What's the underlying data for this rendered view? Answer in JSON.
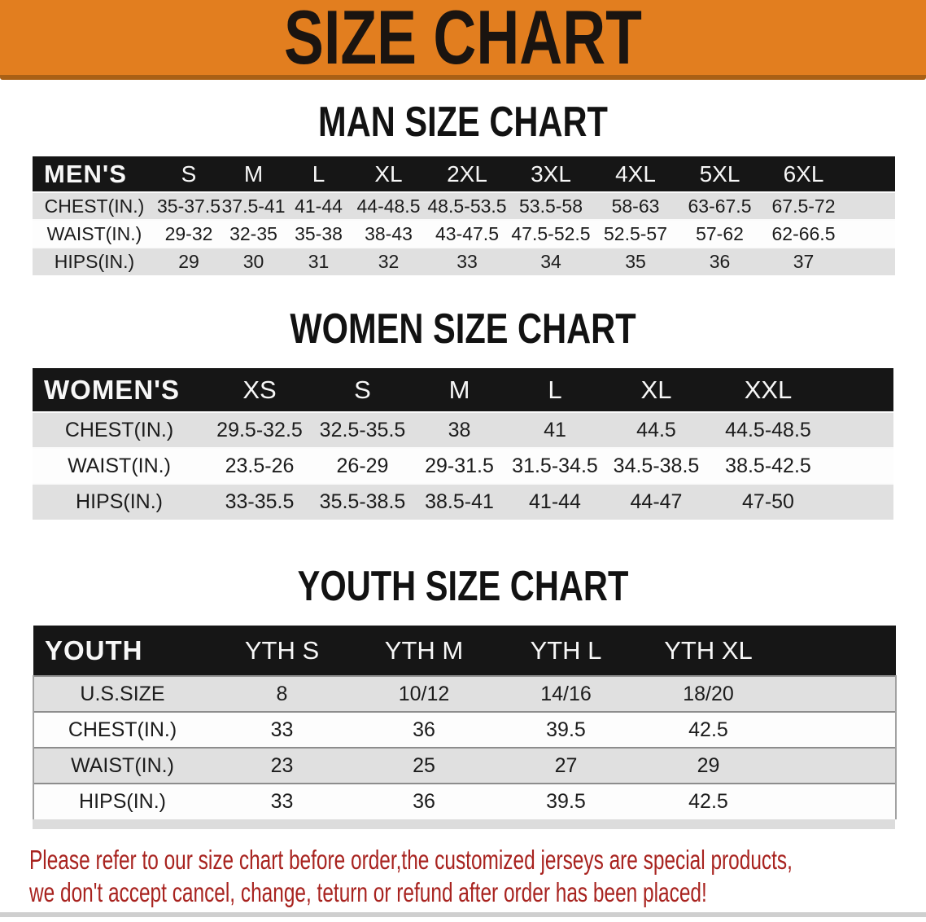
{
  "banner": {
    "title": "SIZE CHART",
    "bg_color": "#e27e1f",
    "border_color": "#a96015"
  },
  "colors": {
    "table_header_bar": "#161616",
    "row_gray": "#e0e0e0",
    "row_white": "#fdfdfd"
  },
  "sections": [
    {
      "heading": "MAN SIZE CHART",
      "label": "MEN'S",
      "columns": [
        "S",
        "M",
        "L",
        "XL",
        "2XL",
        "3XL",
        "4XL",
        "5XL",
        "6XL"
      ],
      "rows": [
        {
          "label": "CHEST(IN.)",
          "values": [
            "35-37.5",
            "37.5-41",
            "41-44",
            "44-48.5",
            "48.5-53.5",
            "53.5-58",
            "58-63",
            "63-67.5",
            "67.5-72"
          ]
        },
        {
          "label": "WAIST(IN.)",
          "values": [
            "29-32",
            "32-35",
            "35-38",
            "38-43",
            "43-47.5",
            "47.5-52.5",
            "52.5-57",
            "57-62",
            "62-66.5"
          ]
        },
        {
          "label": "HIPS(IN.)",
          "values": [
            "29",
            "30",
            "31",
            "32",
            "33",
            "34",
            "35",
            "36",
            "37"
          ]
        }
      ]
    },
    {
      "heading": "WOMEN SIZE CHART",
      "label": "WOMEN'S",
      "columns": [
        "XS",
        "S",
        "M",
        "L",
        "XL",
        "XXL"
      ],
      "rows": [
        {
          "label": "CHEST(IN.)",
          "values": [
            "29.5-32.5",
            "32.5-35.5",
            "38",
            "41",
            "44.5",
            "44.5-48.5"
          ]
        },
        {
          "label": "WAIST(IN.)",
          "values": [
            "23.5-26",
            "26-29",
            "29-31.5",
            "31.5-34.5",
            "34.5-38.5",
            "38.5-42.5"
          ]
        },
        {
          "label": "HIPS(IN.)",
          "values": [
            "33-35.5",
            "35.5-38.5",
            "38.5-41",
            "41-44",
            "44-47",
            "47-50"
          ]
        }
      ]
    },
    {
      "heading": "YOUTH SIZE CHART",
      "label": "YOUTH",
      "columns": [
        "YTH S",
        "YTH M",
        "YTH L",
        "YTH XL"
      ],
      "rows": [
        {
          "label": "U.S.SIZE",
          "values": [
            "8",
            "10/12",
            "14/16",
            "18/20"
          ]
        },
        {
          "label": "CHEST(IN.)",
          "values": [
            "33",
            "36",
            "39.5",
            "42.5"
          ]
        },
        {
          "label": "WAIST(IN.)",
          "values": [
            "23",
            "25",
            "27",
            "29"
          ]
        },
        {
          "label": "HIPS(IN.)",
          "values": [
            "33",
            "36",
            "39.5",
            "42.5"
          ]
        }
      ]
    }
  ],
  "disclaimer": {
    "line1": "Please refer to our size chart before order,the customized jerseys are special products,",
    "line2": "we don't accept cancel, change, teturn or refund after order has been placed!",
    "color": "#a8231f"
  }
}
